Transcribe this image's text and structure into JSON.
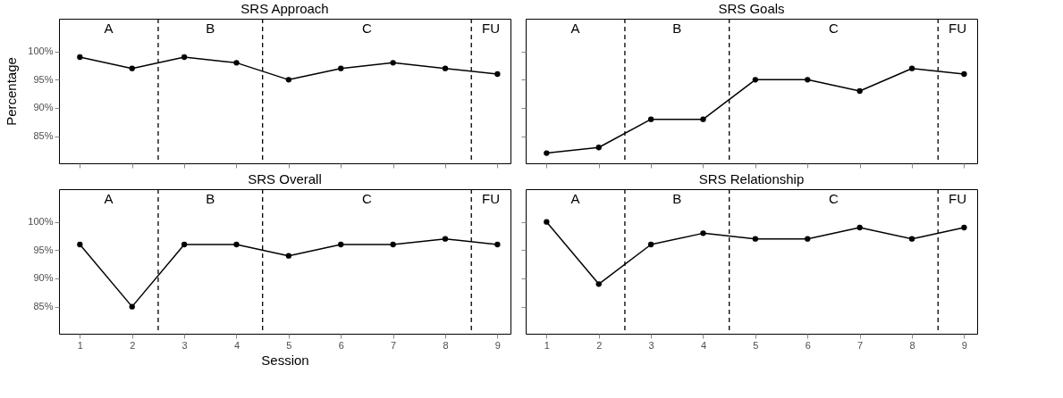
{
  "chart_data": [
    {
      "type": "line",
      "title": "SRS Approach",
      "ylabel": "Percentage",
      "x": [
        1,
        2,
        3,
        4,
        5,
        6,
        7,
        8,
        9
      ],
      "series": [
        {
          "color": "#000000",
          "values": [
            99,
            97,
            99,
            98,
            95,
            97,
            98,
            97,
            96
          ]
        }
      ],
      "xlim": [
        0.6,
        9.25
      ],
      "xticks": [
        1,
        2,
        3,
        4,
        5,
        6,
        7,
        8,
        9
      ],
      "ylim": [
        80.2,
        105.8
      ],
      "yticks": [
        {
          "value": 85,
          "label": "85%"
        },
        {
          "value": 90,
          "label": "90%"
        },
        {
          "value": 95,
          "label": "95%"
        },
        {
          "value": 100,
          "label": "100%"
        }
      ],
      "tick_labels": "y",
      "grid": false,
      "marker": "circle",
      "line_style": "solid",
      "ref_lines": [
        {
          "axis": "x",
          "value": 2.5,
          "line_style": "dashed"
        },
        {
          "axis": "x",
          "value": 4.5,
          "line_style": "dashed"
        },
        {
          "axis": "x",
          "value": 8.5,
          "line_style": "dashed"
        }
      ],
      "annotations": [
        "A",
        "B",
        "C",
        "FU"
      ]
    },
    {
      "type": "line",
      "title": "SRS Goals",
      "x": [
        1,
        2,
        3,
        4,
        5,
        6,
        7,
        8,
        9
      ],
      "series": [
        {
          "color": "#000000",
          "values": [
            82,
            83,
            88,
            88,
            95,
            95,
            93,
            97,
            96
          ]
        }
      ],
      "xlim": [
        0.6,
        9.25
      ],
      "xticks": [
        1,
        2,
        3,
        4,
        5,
        6,
        7,
        8,
        9
      ],
      "ylim": [
        80.2,
        105.8
      ],
      "yticks": [
        85,
        90,
        95,
        100
      ],
      "tick_labels": false,
      "grid": false,
      "marker": "circle",
      "line_style": "solid",
      "ref_lines": [
        {
          "axis": "x",
          "value": 2.5,
          "line_style": "dashed"
        },
        {
          "axis": "x",
          "value": 4.5,
          "line_style": "dashed"
        },
        {
          "axis": "x",
          "value": 8.5,
          "line_style": "dashed"
        }
      ],
      "annotations": [
        "A",
        "B",
        "C",
        "FU"
      ]
    },
    {
      "type": "line",
      "title": "SRS Overall",
      "xlabel": "Session",
      "x": [
        1,
        2,
        3,
        4,
        5,
        6,
        7,
        8,
        9
      ],
      "series": [
        {
          "color": "#000000",
          "values": [
            96,
            85,
            96,
            96,
            94,
            96,
            96,
            97,
            96
          ]
        }
      ],
      "xlim": [
        0.6,
        9.25
      ],
      "xticks": [
        1,
        2,
        3,
        4,
        5,
        6,
        7,
        8,
        9
      ],
      "ylim": [
        80.2,
        105.8
      ],
      "yticks": [
        {
          "value": 85,
          "label": "85%"
        },
        {
          "value": 90,
          "label": "90%"
        },
        {
          "value": 95,
          "label": "95%"
        },
        {
          "value": 100,
          "label": "100%"
        }
      ],
      "grid": false,
      "marker": "circle",
      "line_style": "solid",
      "ref_lines": [
        {
          "axis": "x",
          "value": 2.5,
          "line_style": "dashed"
        },
        {
          "axis": "x",
          "value": 4.5,
          "line_style": "dashed"
        },
        {
          "axis": "x",
          "value": 8.5,
          "line_style": "dashed"
        }
      ],
      "annotations": [
        "A",
        "B",
        "C",
        "FU"
      ]
    },
    {
      "type": "line",
      "title": "SRS Relationship",
      "x": [
        1,
        2,
        3,
        4,
        5,
        6,
        7,
        8,
        9
      ],
      "series": [
        {
          "color": "#000000",
          "values": [
            100,
            89,
            96,
            98,
            97,
            97,
            99,
            97,
            99
          ]
        }
      ],
      "xlim": [
        0.6,
        9.25
      ],
      "xticks": [
        1,
        2,
        3,
        4,
        5,
        6,
        7,
        8,
        9
      ],
      "ylim": [
        80.2,
        105.8
      ],
      "yticks": [
        85,
        90,
        95,
        100
      ],
      "tick_labels": "x",
      "grid": false,
      "marker": "circle",
      "line_style": "solid",
      "ref_lines": [
        {
          "axis": "x",
          "value": 2.5,
          "line_style": "dashed"
        },
        {
          "axis": "x",
          "value": 4.5,
          "line_style": "dashed"
        },
        {
          "axis": "x",
          "value": 8.5,
          "line_style": "dashed"
        }
      ],
      "annotations": [
        "A",
        "B",
        "C",
        "FU"
      ]
    }
  ]
}
